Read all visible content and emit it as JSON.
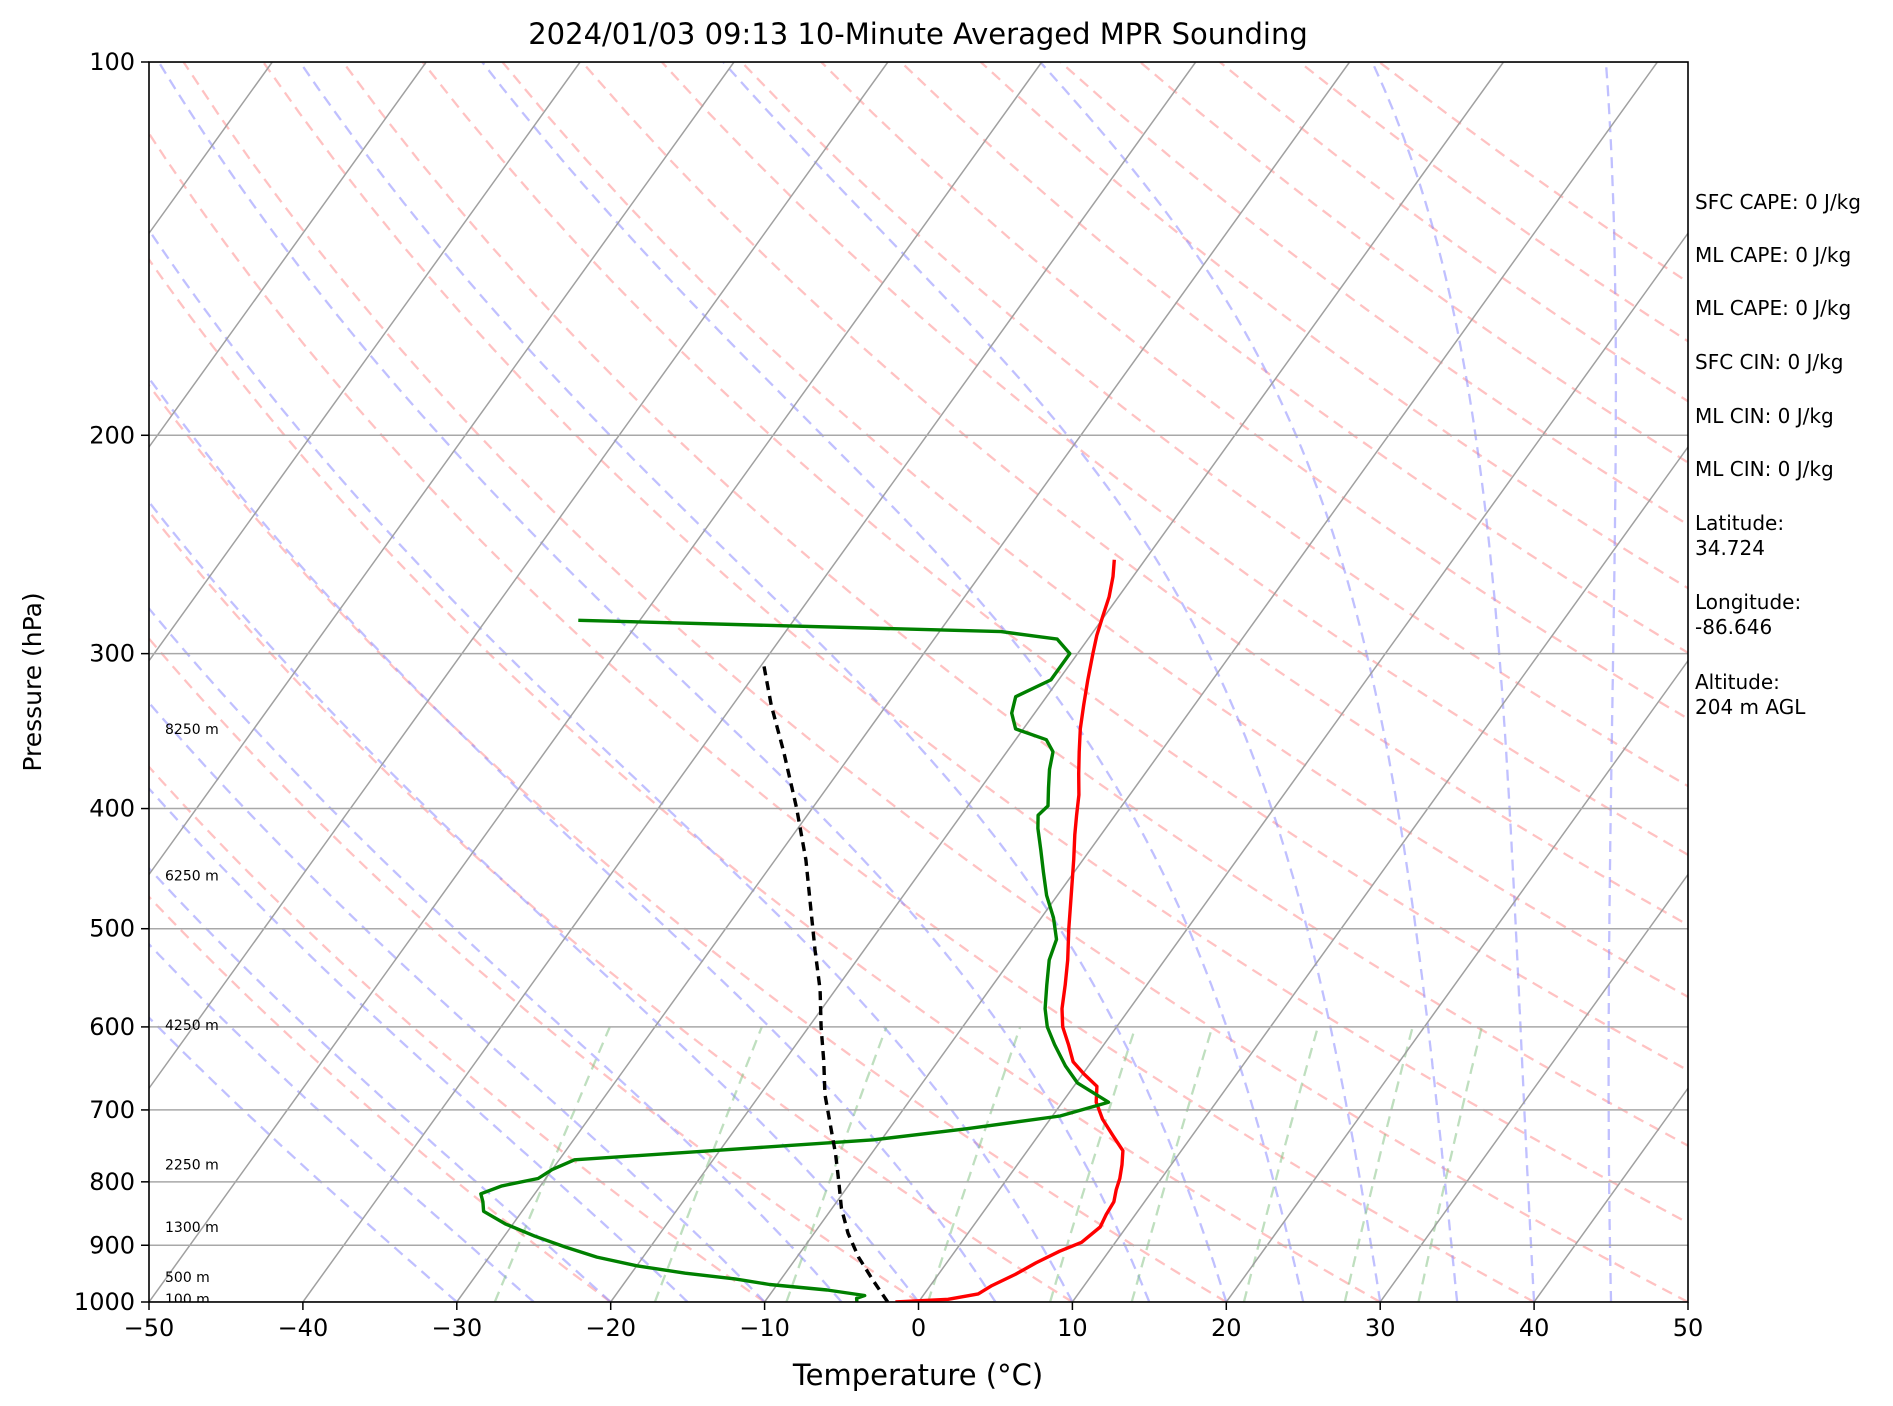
{
  "chart_data": {
    "type": "line",
    "title": "2024/01/03 09:13 10-Minute Averaged MPR Sounding",
    "xlabel": "Temperature (°C)",
    "ylabel": "Pressure (hPa)",
    "xlim": [
      -50,
      50
    ],
    "ylim": [
      1000,
      100
    ],
    "y_scale": "log",
    "x_ticks": [
      -50,
      -40,
      -30,
      -20,
      -10,
      0,
      10,
      20,
      30,
      40,
      50
    ],
    "x_tick_labels": [
      "−50",
      "−40",
      "−30",
      "−20",
      "−10",
      "0",
      "10",
      "20",
      "30",
      "40",
      "50"
    ],
    "y_ticks": [
      100,
      200,
      300,
      400,
      500,
      600,
      700,
      800,
      900,
      1000
    ],
    "y_tick_labels": [
      "100",
      "200",
      "300",
      "400",
      "500",
      "600",
      "700",
      "800",
      "900",
      "1000"
    ],
    "grid": true,
    "skew": "skew-T log-P",
    "height_labels": [
      {
        "p": 994,
        "text": "100 m"
      },
      {
        "p": 955,
        "text": "500 m"
      },
      {
        "p": 870,
        "text": "1300 m"
      },
      {
        "p": 775,
        "text": "2250 m"
      },
      {
        "p": 598,
        "text": "4250 m"
      },
      {
        "p": 453,
        "text": "6250 m"
      },
      {
        "p": 345,
        "text": "8250 m"
      }
    ],
    "series": [
      {
        "color": "#ff0000",
        "points": [
          [
            1000,
            -1.5
          ],
          [
            995,
            1.8
          ],
          [
            985,
            3.5
          ],
          [
            970,
            4.0
          ],
          [
            950,
            5.0
          ],
          [
            930,
            5.8
          ],
          [
            910,
            6.8
          ],
          [
            895,
            7.8
          ],
          [
            870,
            8.3
          ],
          [
            850,
            8.1
          ],
          [
            830,
            8.0
          ],
          [
            812,
            7.6
          ],
          [
            795,
            7.3
          ],
          [
            775,
            6.8
          ],
          [
            755,
            6.2
          ],
          [
            735,
            4.9
          ],
          [
            712,
            3.4
          ],
          [
            690,
            2.2
          ],
          [
            670,
            1.5
          ],
          [
            655,
            0.1
          ],
          [
            640,
            -1.2
          ],
          [
            620,
            -2.3
          ],
          [
            600,
            -3.5
          ],
          [
            580,
            -4.4
          ],
          [
            555,
            -5.3
          ],
          [
            530,
            -6.3
          ],
          [
            500,
            -7.7
          ],
          [
            470,
            -9.1
          ],
          [
            440,
            -10.6
          ],
          [
            420,
            -11.7
          ],
          [
            405,
            -12.5
          ],
          [
            390,
            -13.3
          ],
          [
            375,
            -14.3
          ],
          [
            360,
            -15.3
          ],
          [
            345,
            -16.3
          ],
          [
            330,
            -17.2
          ],
          [
            315,
            -18.1
          ],
          [
            300,
            -19.0
          ],
          [
            290,
            -19.6
          ],
          [
            280,
            -20.1
          ],
          [
            270,
            -20.6
          ],
          [
            260,
            -21.3
          ],
          [
            252,
            -22.0
          ]
        ]
      },
      {
        "color": "#008000",
        "points": [
          [
            1000,
            -4.0
          ],
          [
            993,
            -4.2
          ],
          [
            988,
            -3.8
          ],
          [
            978,
            -6.5
          ],
          [
            968,
            -10.5
          ],
          [
            958,
            -13.0
          ],
          [
            948,
            -16.5
          ],
          [
            935,
            -20.0
          ],
          [
            920,
            -23.0
          ],
          [
            903,
            -25.5
          ],
          [
            885,
            -28.0
          ],
          [
            865,
            -30.5
          ],
          [
            845,
            -32.5
          ],
          [
            830,
            -33.0
          ],
          [
            818,
            -33.5
          ],
          [
            806,
            -32.5
          ],
          [
            795,
            -30.5
          ],
          [
            782,
            -30.0
          ],
          [
            768,
            -29.0
          ],
          [
            755,
            -20.5
          ],
          [
            740,
            -10.5
          ],
          [
            725,
            -5.0
          ],
          [
            708,
            0.5
          ],
          [
            690,
            3.0
          ],
          [
            666,
            0.1
          ],
          [
            645,
            -1.5
          ],
          [
            620,
            -3.2
          ],
          [
            600,
            -4.5
          ],
          [
            580,
            -5.5
          ],
          [
            555,
            -6.5
          ],
          [
            530,
            -7.5
          ],
          [
            510,
            -8.0
          ],
          [
            490,
            -9.2
          ],
          [
            470,
            -10.7
          ],
          [
            450,
            -12.0
          ],
          [
            432,
            -13.2
          ],
          [
            415,
            -14.4
          ],
          [
            405,
            -15.0
          ],
          [
            398,
            -14.8
          ],
          [
            385,
            -15.6
          ],
          [
            372,
            -16.4
          ],
          [
            360,
            -17.0
          ],
          [
            352,
            -18.0
          ],
          [
            345,
            -20.5
          ],
          [
            335,
            -21.5
          ],
          [
            325,
            -22.0
          ],
          [
            315,
            -20.5
          ],
          [
            300,
            -20.5
          ],
          [
            292,
            -22.0
          ],
          [
            288,
            -26.0
          ],
          [
            282,
            -54.0
          ]
        ]
      },
      {
        "color": "#000000",
        "dashed": true,
        "points": [
          [
            1000,
            -2.0
          ],
          [
            960,
            -4.0
          ],
          [
            920,
            -6.0
          ],
          [
            880,
            -7.8
          ],
          [
            840,
            -9.4
          ],
          [
            800,
            -10.8
          ],
          [
            760,
            -12.3
          ],
          [
            720,
            -14.0
          ],
          [
            680,
            -15.8
          ],
          [
            640,
            -17.4
          ],
          [
            600,
            -19.2
          ],
          [
            560,
            -21.0
          ],
          [
            520,
            -23.2
          ],
          [
            480,
            -25.5
          ],
          [
            440,
            -28.0
          ],
          [
            400,
            -31.0
          ],
          [
            360,
            -34.5
          ],
          [
            330,
            -37.5
          ],
          [
            305,
            -40.0
          ]
        ]
      }
    ]
  },
  "stats": {
    "sfc_cape": "SFC CAPE: 0 J/kg",
    "ml_cape_1": "ML CAPE: 0 J/kg",
    "ml_cape_2": "ML CAPE: 0 J/kg",
    "sfc_cin": "SFC CIN: 0 J/kg",
    "ml_cin_1": "ML CIN: 0 J/kg",
    "ml_cin_2": "ML CIN: 0 J/kg",
    "latitude": "Latitude:\n34.724",
    "longitude": "Longitude:\n-86.646",
    "altitude": "Altitude:\n204 m AGL"
  },
  "colors": {
    "temperature": "#ff0000",
    "dewpoint": "#008000",
    "parcel": "#000000",
    "dry_adiabat": "#ff9a9a",
    "moist_adiabat": "#8c8cff",
    "mixing_ratio": "#80c080",
    "isotherm": "#a0a0a0"
  }
}
